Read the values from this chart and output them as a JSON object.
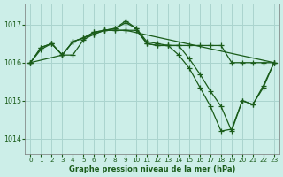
{
  "background_color": "#cceee8",
  "grid_color": "#aad4ce",
  "line_color": "#1a5c1a",
  "marker_color": "#1a5c1a",
  "xlabel": "Graphe pression niveau de la mer (hPa)",
  "xlim": [
    -0.5,
    23.5
  ],
  "ylim": [
    1013.6,
    1017.55
  ],
  "yticks": [
    1014,
    1015,
    1016,
    1017
  ],
  "xticks": [
    0,
    1,
    2,
    3,
    4,
    5,
    6,
    7,
    8,
    9,
    10,
    11,
    12,
    13,
    14,
    15,
    16,
    17,
    18,
    19,
    20,
    21,
    22,
    23
  ],
  "series": [
    {
      "x": [
        0,
        1,
        2,
        3,
        4,
        5,
        6,
        7,
        8,
        9,
        10,
        11,
        12,
        13,
        14,
        15,
        16,
        17,
        18,
        19,
        20,
        21,
        22,
        23
      ],
      "y": [
        1016.0,
        1016.4,
        1016.5,
        1016.2,
        1016.55,
        1016.65,
        1016.75,
        1016.85,
        1016.85,
        1016.85,
        1016.85,
        1016.5,
        1016.45,
        1016.45,
        1016.45,
        1016.45,
        1016.45,
        1016.45,
        1016.45,
        1016.0,
        1016.0,
        1016.0,
        1016.0,
        1016.0
      ]
    },
    {
      "x": [
        0,
        1,
        2,
        3,
        4,
        5,
        6,
        7,
        8,
        9,
        10,
        11,
        12,
        13,
        14,
        15,
        16,
        17,
        18,
        19,
        20,
        21,
        22,
        23
      ],
      "y": [
        1016.0,
        1016.4,
        1016.5,
        1016.2,
        1016.55,
        1016.65,
        1016.8,
        1016.85,
        1016.9,
        1017.05,
        1016.9,
        1016.5,
        1016.45,
        1016.45,
        1016.45,
        1016.1,
        1015.7,
        1015.25,
        1014.85,
        1014.2,
        1015.0,
        1014.9,
        1015.4,
        1016.0
      ]
    },
    {
      "x": [
        0,
        1,
        2,
        3,
        4,
        5,
        6,
        7,
        8,
        9,
        23
      ],
      "y": [
        1016.0,
        1016.35,
        1016.5,
        1016.2,
        1016.2,
        1016.6,
        1016.75,
        1016.85,
        1016.85,
        1016.85,
        1016.0
      ]
    },
    {
      "x": [
        0,
        3,
        4,
        5,
        6,
        7,
        8,
        9,
        10,
        11,
        12,
        13,
        14,
        15,
        16,
        17,
        18,
        19,
        20,
        21,
        22,
        23
      ],
      "y": [
        1016.0,
        1016.2,
        1016.55,
        1016.65,
        1016.8,
        1016.85,
        1016.9,
        1017.1,
        1016.9,
        1016.55,
        1016.5,
        1016.45,
        1016.2,
        1015.85,
        1015.35,
        1014.85,
        1014.2,
        1014.25,
        1015.0,
        1014.9,
        1015.35,
        1016.0
      ]
    }
  ]
}
